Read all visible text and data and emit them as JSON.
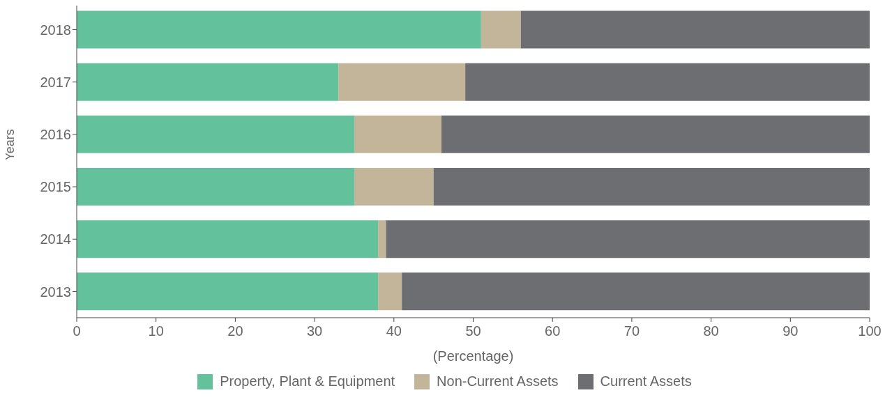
{
  "chart_data": {
    "type": "bar",
    "orientation": "horizontal",
    "stacked": true,
    "xlabel": "(Percentage)",
    "ylabel": "Years",
    "categories": [
      "2018",
      "2017",
      "2016",
      "2015",
      "2014",
      "2013"
    ],
    "series": [
      {
        "name": "Property, Plant & Equipment",
        "color": "#63c29c",
        "values": [
          51,
          33,
          35,
          35,
          38,
          38
        ]
      },
      {
        "name": "Non-Current Assets",
        "color": "#c3b59a",
        "values": [
          5,
          16,
          11,
          10,
          1,
          3
        ]
      },
      {
        "name": "Current Assets",
        "color": "#6d6e72",
        "values": [
          44,
          51,
          54,
          55,
          61,
          59
        ]
      }
    ],
    "xlim": [
      0,
      100
    ],
    "xticks": [
      0,
      10,
      20,
      30,
      40,
      50,
      60,
      70,
      80,
      90,
      100
    ],
    "grid": false,
    "legend": "bottom"
  }
}
